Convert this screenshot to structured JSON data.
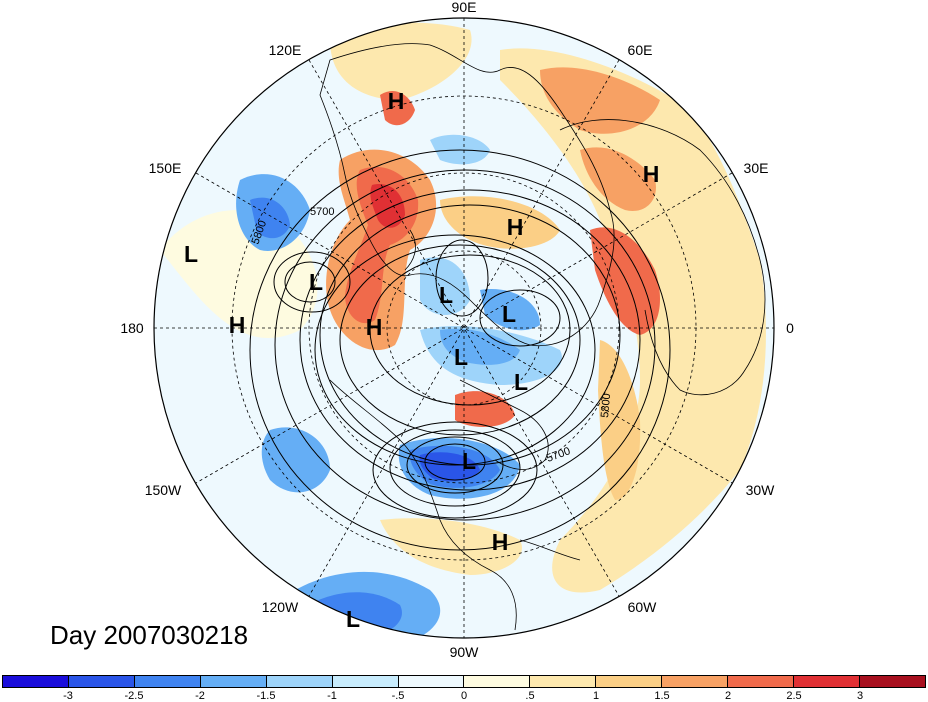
{
  "map": {
    "meridian_labels": {
      "e90": "90E",
      "e120": "120E",
      "e60": "60E",
      "e150": "150E",
      "e30": "30E",
      "deg180": "180",
      "deg0": "0",
      "w150": "150W",
      "w30": "30W",
      "w120": "120W",
      "w60": "60W",
      "w90": "90W"
    },
    "contour_labels": [
      "5700",
      "5800",
      "5700",
      "5800"
    ],
    "high_marker": "H",
    "low_marker": "L",
    "projection": "north polar stereographic",
    "ocean_background": "#ffffff"
  },
  "date_label": "Day 2007030218",
  "colorbar": {
    "colors": [
      "#1a0ddb",
      "#2a55e8",
      "#3f83f0",
      "#65aef5",
      "#9ed4fa",
      "#c8ecfd",
      "#eef9fe",
      "#fefbe0",
      "#fde8ae",
      "#fbcf86",
      "#f7a164",
      "#f06a4b",
      "#e03034",
      "#a8101f"
    ],
    "tick_labels": [
      "-3",
      "-2.5",
      "-2",
      "-1.5",
      "-1",
      "-.5",
      "0",
      ".5",
      "1",
      "1.5",
      "2",
      "2.5",
      "3"
    ]
  }
}
